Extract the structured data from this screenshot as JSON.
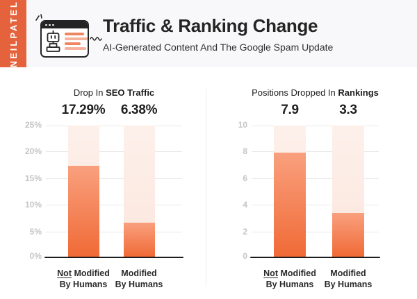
{
  "brand": {
    "name": "NEILPATEL"
  },
  "header": {
    "title": "Traffic & Ranking Change",
    "subtitle": "AI-Generated Content And The Google Spam Update",
    "icon": "browser-robot-icon"
  },
  "colors": {
    "accent_orange": "#E5633C",
    "header_bg": "#F8F8FA",
    "text_dark": "#242424",
    "bar_gradient_top": "#F9A07E",
    "bar_gradient_bottom": "#F06A36",
    "bar_track_top": "#FDF0EA",
    "bar_track_bottom": "#FBE7DE",
    "gridline": "#E8E8E8",
    "axis_line": "#1C1C1C",
    "tick_label": "#C5C5C7",
    "icon_line_dark": "#EE8662",
    "icon_line_light": "#F5B39D"
  },
  "chart_data": [
    {
      "type": "bar",
      "title": "Drop In SEO Traffic",
      "title_regular": "Drop In ",
      "title_bold": "SEO Traffic",
      "values": [
        17.29,
        6.38
      ],
      "value_labels": [
        "17.29%",
        "6.38%"
      ],
      "ylim": [
        0,
        25
      ],
      "yticks": [
        "25%",
        "20%",
        "15%",
        "10%",
        "5%",
        "0%"
      ],
      "grid": true,
      "legend": "none",
      "categories": [
        {
          "label": "Not Modified By Humans",
          "line1_underline": "Not",
          "line1_rest": " Modified",
          "line2": "By Humans"
        },
        {
          "label": "Modified By Humans",
          "line1_underline": "",
          "line1_rest": "Modified",
          "line2": "By Humans"
        }
      ]
    },
    {
      "type": "bar",
      "title": "Positions Dropped In Rankings",
      "title_regular": "Positions Dropped In ",
      "title_bold": "Rankings",
      "values": [
        7.9,
        3.3
      ],
      "value_labels": [
        "7.9",
        "3.3"
      ],
      "ylim": [
        0,
        10
      ],
      "yticks": [
        "10",
        "8",
        "6",
        "4",
        "2",
        "0"
      ],
      "grid": true,
      "legend": "none",
      "categories": [
        {
          "label": "Not Modified By Humans",
          "line1_underline": "Not",
          "line1_rest": " Modified",
          "line2": "By Humans"
        },
        {
          "label": "Modified By Humans",
          "line1_underline": "",
          "line1_rest": "Modified",
          "line2": "By Humans"
        }
      ]
    }
  ]
}
